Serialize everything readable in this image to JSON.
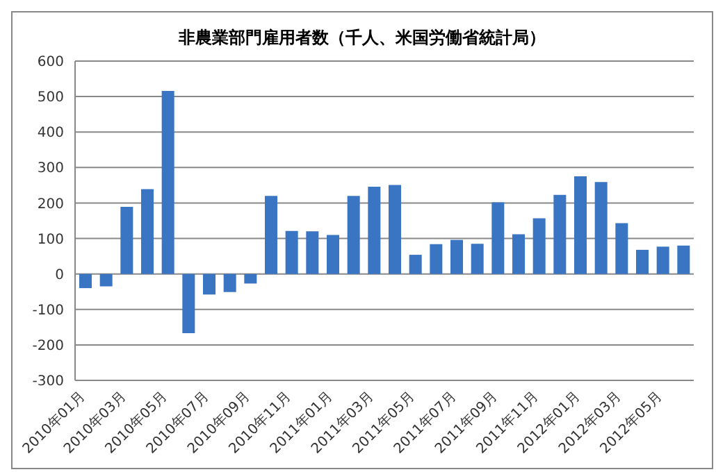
{
  "chart_data": {
    "type": "bar",
    "title": "非農業部門雇用者数（千人、米国労働省統計局）",
    "categories": [
      "2010年01月",
      null,
      "2010年03月",
      null,
      "2010年05月",
      null,
      "2010年07月",
      null,
      "2010年09月",
      null,
      "2010年11月",
      null,
      "2011年01月",
      null,
      "2011年03月",
      null,
      "2011年05月",
      null,
      "2011年07月",
      null,
      "2011年09月",
      null,
      "2011年11月",
      null,
      "2012年01月",
      null,
      "2012年03月",
      null,
      "2012年05月",
      null
    ],
    "values": [
      -40,
      -35,
      189,
      239,
      516,
      -167,
      -58,
      -51,
      -27,
      220,
      121,
      120,
      110,
      220,
      246,
      251,
      54,
      84,
      96,
      85,
      202,
      112,
      157,
      223,
      275,
      259,
      143,
      68,
      77,
      80
    ],
    "color": "#3a75c4",
    "ylim": [
      -300,
      600
    ],
    "yticks": [
      -300,
      -200,
      -100,
      0,
      100,
      200,
      300,
      400,
      500,
      600
    ],
    "grid": "y",
    "legend": false
  }
}
